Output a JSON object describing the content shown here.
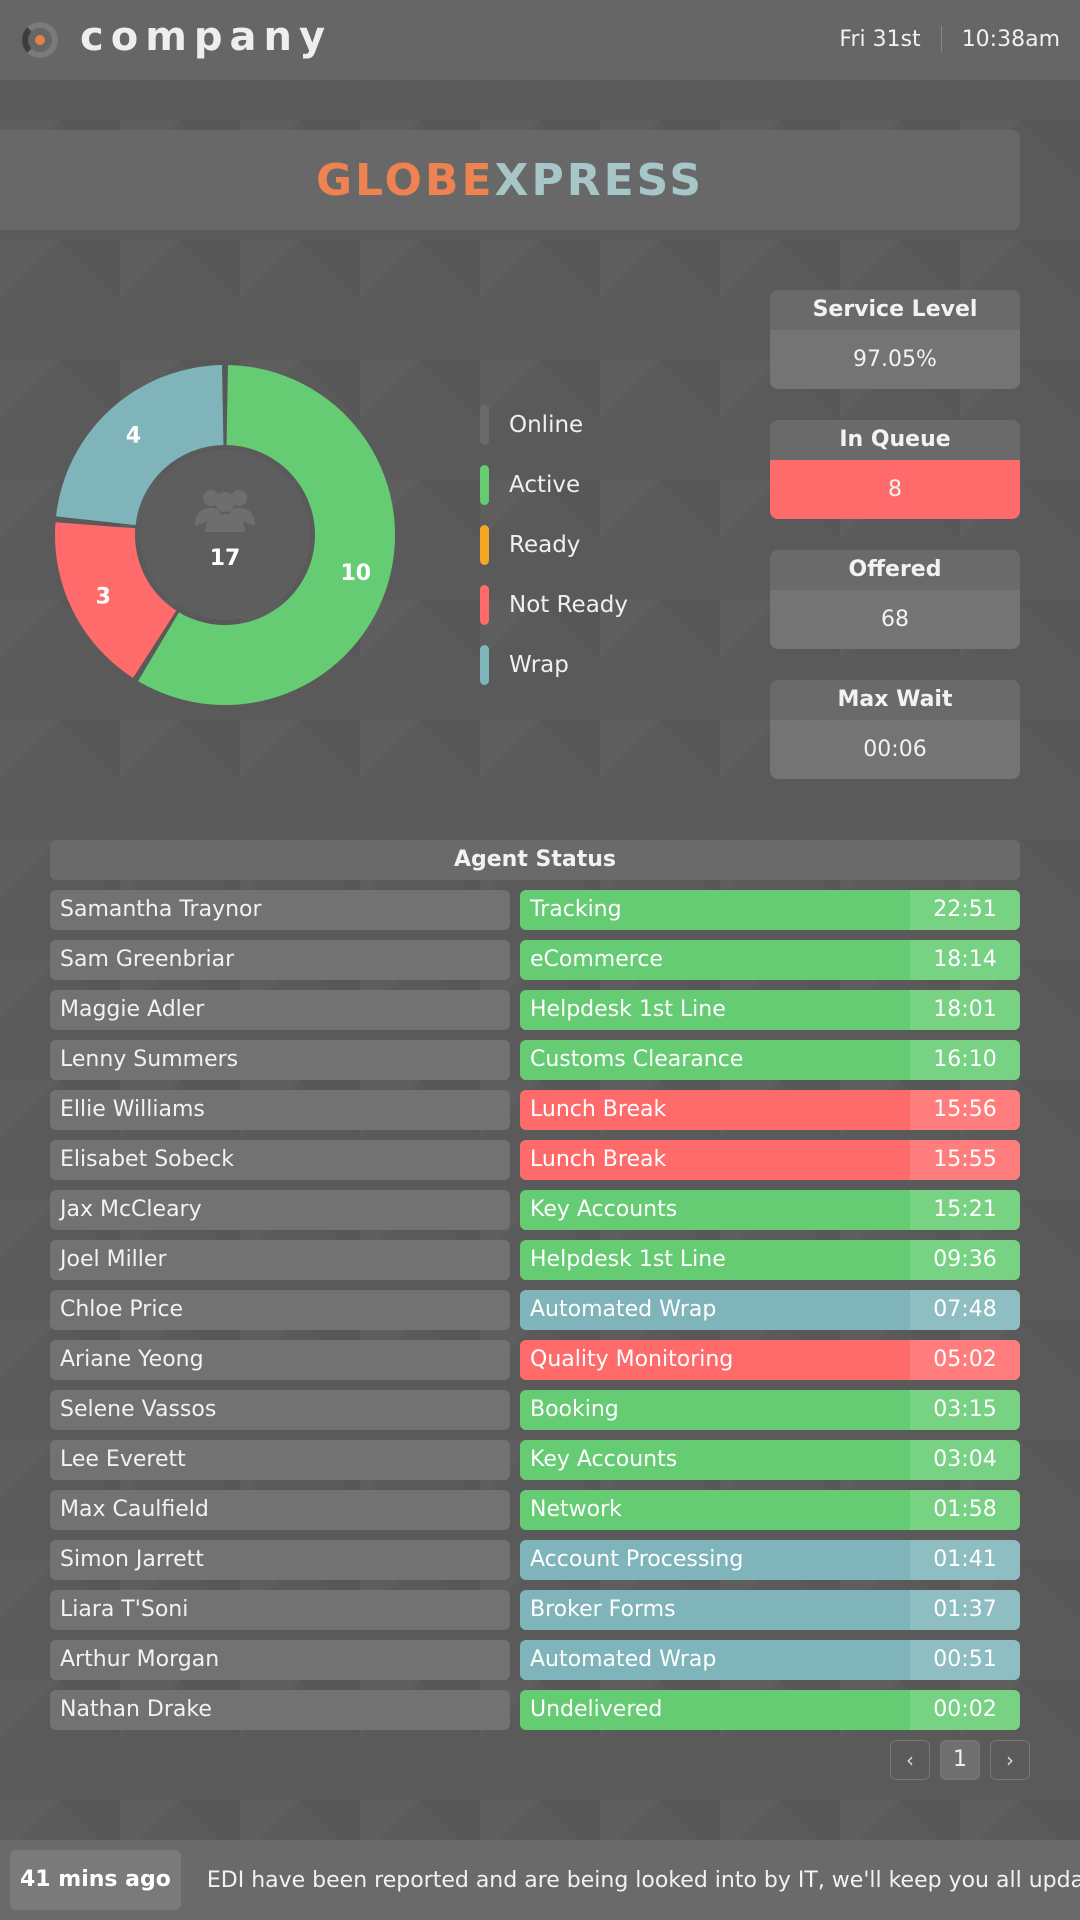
{
  "topbar": {
    "company": "company",
    "date": "Fri 31st",
    "time": "10:38am"
  },
  "brand": {
    "part1": "GLOBE",
    "part2": "XPRESS"
  },
  "donut": {
    "total": "17",
    "icon": "users-icon",
    "segments": [
      {
        "name": "Active",
        "value": 10,
        "label": "10",
        "color": "#66cc74"
      },
      {
        "name": "Not Ready",
        "value": 3,
        "label": "3",
        "color": "#ff6b6b"
      },
      {
        "name": "Wrap",
        "value": 4,
        "label": "4",
        "color": "#7fb5ba"
      }
    ]
  },
  "legend": [
    {
      "label": "Online",
      "color": "#6a6a6a"
    },
    {
      "label": "Active",
      "color": "#66cc74"
    },
    {
      "label": "Ready",
      "color": "#f5a623"
    },
    {
      "label": "Not Ready",
      "color": "#ff6b6b"
    },
    {
      "label": "Wrap",
      "color": "#7fb5ba"
    }
  ],
  "stats": [
    {
      "title": "Service Level",
      "value": "97.05%"
    },
    {
      "title": "In Queue",
      "value": "8"
    },
    {
      "title": "Offered",
      "value": "68"
    },
    {
      "title": "Max Wait",
      "value": "00:06"
    }
  ],
  "agents": {
    "header": "Agent Status",
    "rows": [
      {
        "name": "Samantha Traynor",
        "status": "Tracking",
        "time": "22:51",
        "color": "#66cc74"
      },
      {
        "name": "Sam Greenbriar",
        "status": "eCommerce",
        "time": "18:14",
        "color": "#66cc74"
      },
      {
        "name": "Maggie Adler",
        "status": "Helpdesk 1st Line",
        "time": "18:01",
        "color": "#66cc74"
      },
      {
        "name": "Lenny Summers",
        "status": "Customs Clearance",
        "time": "16:10",
        "color": "#66cc74"
      },
      {
        "name": "Ellie Williams",
        "status": "Lunch Break",
        "time": "15:56",
        "color": "#ff6b6b"
      },
      {
        "name": "Elisabet Sobeck",
        "status": "Lunch Break",
        "time": "15:55",
        "color": "#ff6b6b"
      },
      {
        "name": "Jax McCleary",
        "status": "Key Accounts",
        "time": "15:21",
        "color": "#66cc74"
      },
      {
        "name": "Joel Miller",
        "status": "Helpdesk 1st Line",
        "time": "09:36",
        "color": "#66cc74"
      },
      {
        "name": "Chloe Price",
        "status": "Automated Wrap",
        "time": "07:48",
        "color": "#7fb5ba"
      },
      {
        "name": "Ariane Yeong",
        "status": "Quality Monitoring",
        "time": "05:02",
        "color": "#ff6b6b"
      },
      {
        "name": "Selene Vassos",
        "status": "Booking",
        "time": "03:15",
        "color": "#66cc74"
      },
      {
        "name": "Lee Everett",
        "status": "Key Accounts",
        "time": "03:04",
        "color": "#66cc74"
      },
      {
        "name": "Max Caulfield",
        "status": "Network",
        "time": "01:58",
        "color": "#66cc74"
      },
      {
        "name": "Simon Jarrett",
        "status": "Account Processing",
        "time": "01:41",
        "color": "#7fb5ba"
      },
      {
        "name": "Liara T'Soni",
        "status": "Broker Forms",
        "time": "01:37",
        "color": "#7fb5ba"
      },
      {
        "name": "Arthur Morgan",
        "status": "Automated Wrap",
        "time": "00:51",
        "color": "#7fb5ba"
      },
      {
        "name": "Nathan Drake",
        "status": "Undelivered",
        "time": "00:02",
        "color": "#66cc74"
      }
    ]
  },
  "pager": {
    "prev": "‹",
    "page": "1",
    "next": "›"
  },
  "footer": {
    "age": "41 mins ago",
    "message": "EDI have been reported and are being looked into by IT, we'll keep you all updated"
  }
}
